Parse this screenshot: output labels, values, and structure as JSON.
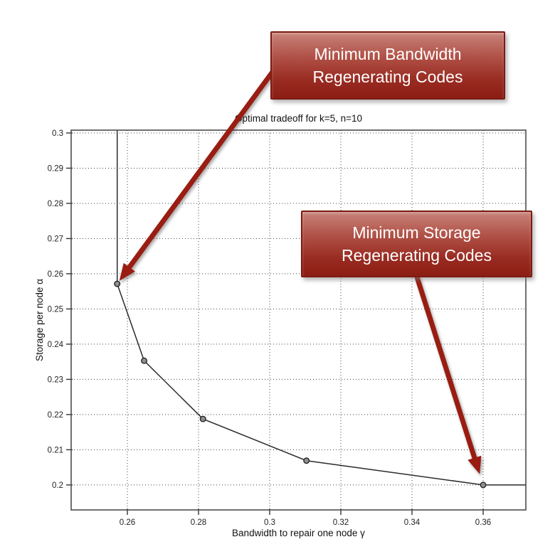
{
  "figure": {
    "title": "Optimal tradeoff for k=5, n=10",
    "xlabel": "Bandwidth to repair one node γ",
    "ylabel": "Storage per node α"
  },
  "chart_data": {
    "type": "line",
    "title": "Optimal tradeoff for k=5, n=10",
    "xlabel": "Bandwidth to repair one node γ",
    "ylabel": "Storage per node α",
    "xlim": [
      0.2442,
      0.372
    ],
    "ylim": [
      0.1929,
      0.3008
    ],
    "xticks": [
      0.26,
      0.28,
      0.3,
      0.32,
      0.34,
      0.36
    ],
    "xtick_labels": [
      "0.26",
      "0.28",
      "0.3",
      "0.32",
      "0.34",
      "0.36"
    ],
    "yticks": [
      0.2,
      0.21,
      0.22,
      0.23,
      0.24,
      0.25,
      0.26,
      0.27,
      0.28,
      0.29,
      0.3
    ],
    "ytick_labels": [
      "0.2",
      "0.21",
      "0.22",
      "0.23",
      "0.24",
      "0.25",
      "0.26",
      "0.27",
      "0.28",
      "0.29",
      "0.3"
    ],
    "grid": true,
    "legend": false,
    "series": [
      {
        "name": "optimal-storage-bandwidth-tradeoff",
        "color": "#2b2b2b",
        "points": [
          [
            0.25714,
            0.3008
          ],
          [
            0.25714,
            0.25714
          ],
          [
            0.26471,
            0.23529
          ],
          [
            0.28125,
            0.21875
          ],
          [
            0.31034,
            0.2069
          ],
          [
            0.36,
            0.2
          ],
          [
            0.372,
            0.2
          ]
        ]
      }
    ],
    "marker_points": [
      [
        0.25714,
        0.25714
      ],
      [
        0.26471,
        0.23529
      ],
      [
        0.28125,
        0.21875
      ],
      [
        0.31034,
        0.2069
      ],
      [
        0.36,
        0.2
      ]
    ]
  },
  "annotations": [
    {
      "id": "mbr",
      "label": "Minimum Bandwidth Regenerating Codes",
      "line1": "Minimum Bandwidth",
      "line2": "Regenerating Codes",
      "target": [
        0.25714,
        0.25714
      ]
    },
    {
      "id": "msr",
      "label": "Minimum Storage Regenerating Codes",
      "line1": "Minimum Storage",
      "line2": "Regenerating Codes",
      "target": [
        0.36,
        0.2
      ]
    }
  ],
  "colors": {
    "arrow": "#991d12",
    "callout_border": "#7c1a13",
    "callout_gradient_top": "#c8837a",
    "callout_gradient_bottom": "#8c1d14",
    "callout_text": "#ffffff",
    "curve": "#2b2b2b",
    "axis": "#4d4d4d",
    "grid": "#444444",
    "tick_text": "#222222",
    "title_text": "#111111"
  }
}
